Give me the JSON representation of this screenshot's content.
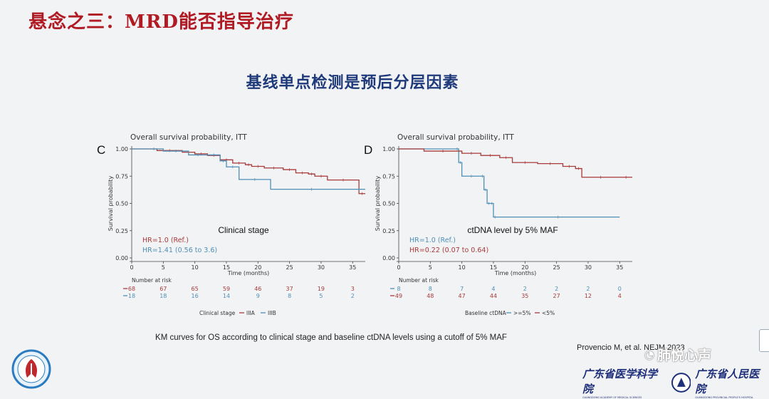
{
  "slide": {
    "title": "悬念之三：MRD能否指导治疗",
    "subtitle": "基线单点检测是预后分层因素",
    "caption": "KM curves for OS according to clinical stage and baseline ctDNA levels using a cutoff of 5% MAF",
    "citation": "Provencio M, et al. NEJM 2023",
    "watermark": "肺悦心声",
    "institution_left": "广东省医学科学院",
    "institution_right": "广东省人民医院",
    "institution_left_en": "GUANGDONG ACADEMY OF MEDICAL SCIENCES",
    "institution_right_en": "GUANGDONG PROVINCIAL PEOPLE'S HOSPITAL"
  },
  "colors": {
    "red": "#a83a3a",
    "blue": "#4f8fb5",
    "axis": "#333333"
  },
  "chart_data": [
    {
      "type": "line",
      "panel": "C",
      "title": "Overall survival probability, ITT",
      "xlabel": "Time (months)",
      "ylabel": "Survival probability",
      "xlim": [
        0,
        37
      ],
      "ylim": [
        0,
        1
      ],
      "x_ticks": [
        "0",
        "5",
        "10",
        "15",
        "20",
        "25",
        "30",
        "35"
      ],
      "y_ticks": [
        "0.00",
        "0.25",
        "0.50",
        "0.75",
        "1.00"
      ],
      "annotation": "Clinical stage",
      "hr_labels": [
        "HR=1.0 (Ref.)",
        "HR=1.41 (0.56 to 3.6)"
      ],
      "series": [
        {
          "name": "IIIA",
          "color": "#a83a3a",
          "x": [
            0,
            4,
            8,
            10,
            12,
            14,
            16,
            18,
            19,
            21,
            24,
            26,
            28,
            29,
            31,
            36,
            37
          ],
          "y": [
            1.0,
            0.985,
            0.97,
            0.955,
            0.94,
            0.9,
            0.87,
            0.855,
            0.84,
            0.825,
            0.81,
            0.78,
            0.77,
            0.75,
            0.715,
            0.59,
            0.59
          ]
        },
        {
          "name": "IIIB",
          "color": "#4f8fb5",
          "x": [
            0,
            2,
            5,
            9,
            12,
            14,
            15,
            17,
            22,
            35,
            37
          ],
          "y": [
            1.0,
            1.0,
            0.98,
            0.945,
            0.945,
            0.89,
            0.835,
            0.72,
            0.63,
            0.63,
            0.63
          ]
        }
      ],
      "risk_table": {
        "title": "Number at risk",
        "rows": [
          {
            "name": "IIIA",
            "values": [
              "68",
              "67",
              "65",
              "59",
              "46",
              "37",
              "19",
              "3"
            ]
          },
          {
            "name": "IIIB",
            "values": [
              "18",
              "18",
              "16",
              "14",
              "9",
              "8",
              "5",
              "2"
            ]
          }
        ]
      },
      "legend": {
        "title": "Clinical stage",
        "items": [
          "IIIA",
          "IIIB"
        ],
        "position": "bottom"
      }
    },
    {
      "type": "line",
      "panel": "D",
      "title": "Overall survival probability, ITT",
      "xlabel": "Time (months)",
      "ylabel": "Survival probability",
      "xlim": [
        0,
        37
      ],
      "ylim": [
        0,
        1
      ],
      "x_ticks": [
        "0",
        "5",
        "10",
        "15",
        "20",
        "25",
        "30",
        "35"
      ],
      "y_ticks": [
        "0.00",
        "0.25",
        "0.50",
        "0.75",
        "1.00"
      ],
      "annotation": "ctDNA level by 5% MAF",
      "hr_labels": [
        "HR=1.0 (Ref.)",
        "HR=0.22 (0.07 to 0.64)"
      ],
      "series": [
        {
          "name": ">=5%",
          "color": "#4f8fb5",
          "x": [
            0,
            9,
            9.5,
            10,
            13,
            13.5,
            14,
            14.5,
            15,
            15.5,
            35
          ],
          "y": [
            1.0,
            1.0,
            0.875,
            0.75,
            0.75,
            0.625,
            0.5,
            0.5,
            0.375,
            0.375,
            0.375
          ]
        },
        {
          "name": "<5%",
          "color": "#a83a3a",
          "x": [
            0,
            4,
            10,
            13,
            16,
            18,
            22,
            26,
            28,
            29,
            35,
            37
          ],
          "y": [
            1.0,
            0.98,
            0.96,
            0.94,
            0.92,
            0.875,
            0.865,
            0.84,
            0.82,
            0.74,
            0.74,
            0.74
          ]
        }
      ],
      "risk_table": {
        "title": "Number at risk",
        "rows": [
          {
            "name": ">=5%",
            "values": [
              "8",
              "8",
              "7",
              "4",
              "2",
              "2",
              "2",
              "0"
            ]
          },
          {
            "name": "<5%",
            "values": [
              "49",
              "48",
              "47",
              "44",
              "35",
              "27",
              "12",
              "4"
            ]
          }
        ]
      },
      "legend": {
        "title": "Baseline ctDNA",
        "items": [
          ">=5%",
          "<5%"
        ],
        "position": "bottom"
      }
    }
  ]
}
